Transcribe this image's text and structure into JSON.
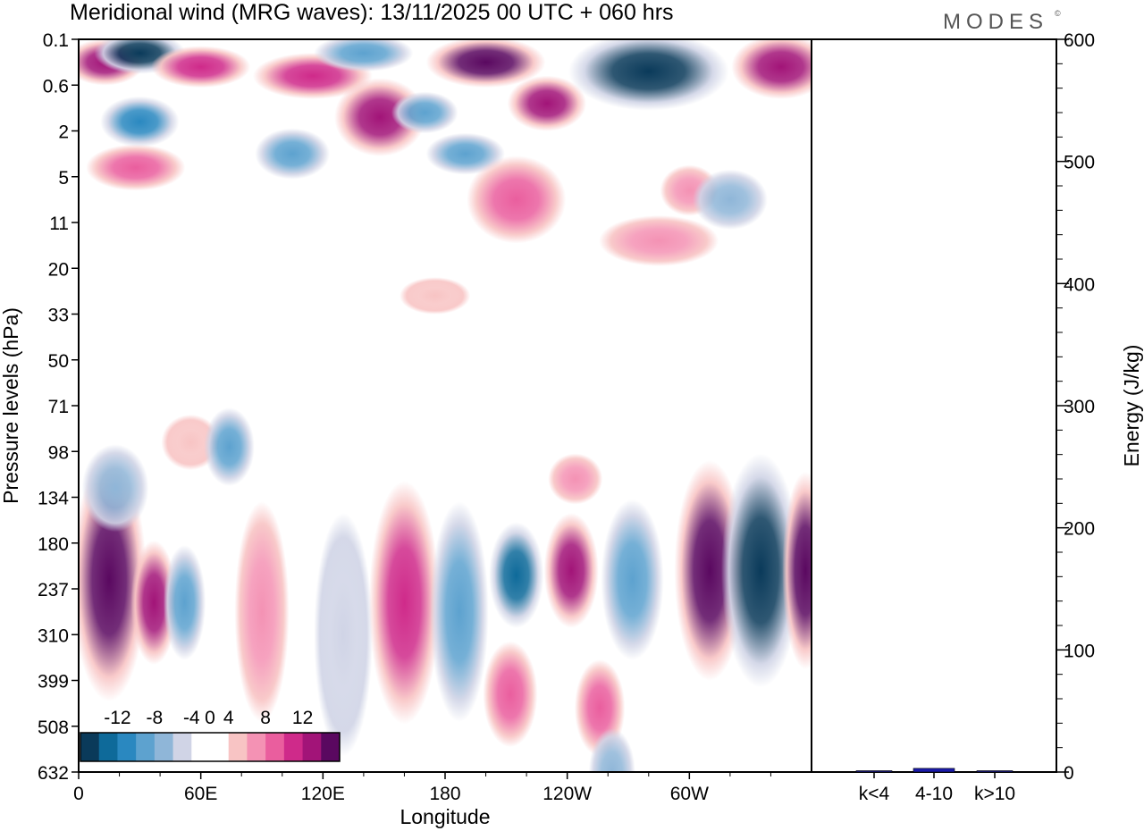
{
  "header": {
    "title": "Meridional wind (MRG waves):  13/11/2025  00 UTC  + 060 hrs",
    "brand": "MODES",
    "brand_mark": "©"
  },
  "chart_data": [
    {
      "type": "heatmap",
      "title": "Meridional wind (MRG waves):  13/11/2025  00 UTC  + 060 hrs",
      "xlabel": "Longitude",
      "ylabel": "Pressure levels (hPa)",
      "x_ticks": [
        "0",
        "60E",
        "120E",
        "180",
        "120W",
        "60W"
      ],
      "x_tick_longitudes": [
        0,
        60,
        120,
        180,
        240,
        300
      ],
      "xlim": [
        0,
        360
      ],
      "y_ticks": [
        "0.1",
        "0.6",
        "2",
        "5",
        "11",
        "20",
        "33",
        "50",
        "71",
        "98",
        "134",
        "180",
        "237",
        "310",
        "399",
        "508",
        "632"
      ],
      "y_tick_index": [
        0,
        1,
        2,
        3,
        4,
        5,
        6,
        7,
        8,
        9,
        10,
        11,
        12,
        13,
        14,
        15,
        16
      ],
      "colorbar": {
        "levels": [
          -14,
          -12,
          -10,
          -8,
          -6,
          -4,
          -2,
          2,
          4,
          6,
          8,
          10,
          12,
          14
        ],
        "labels": [
          "-12",
          "-8",
          "-4",
          "0",
          "4",
          "8",
          "12"
        ],
        "label_values": [
          -12,
          -8,
          -4,
          0,
          4,
          8,
          12
        ],
        "colors": [
          "#0a3a5a",
          "#0e6a9a",
          "#2a88c0",
          "#5da2cf",
          "#8fb6d8",
          "#d0d4e6",
          "#ffffff",
          "#ffffff",
          "#f8c4c4",
          "#f492b4",
          "#ea5e9e",
          "#cf2a8a",
          "#a21478",
          "#5a0860"
        ]
      },
      "features": [
        {
          "lon": 15,
          "level": 11.8,
          "value": 14,
          "width_lon": 28,
          "height_levels": 5.0
        },
        {
          "lon": 13,
          "level": 0.5,
          "value": 12,
          "width_lon": 30,
          "height_levels": 0.7
        },
        {
          "lon": 30,
          "level": 0.3,
          "value": -13,
          "width_lon": 36,
          "height_levels": 0.6
        },
        {
          "lon": 30,
          "level": 1.8,
          "value": -10,
          "width_lon": 30,
          "height_levels": 0.8
        },
        {
          "lon": 60,
          "level": 0.6,
          "value": 10,
          "width_lon": 40,
          "height_levels": 0.6
        },
        {
          "lon": 115,
          "level": 0.8,
          "value": 9,
          "width_lon": 50,
          "height_levels": 0.7
        },
        {
          "lon": 148,
          "level": 1.7,
          "value": 11,
          "width_lon": 36,
          "height_levels": 1.4
        },
        {
          "lon": 140,
          "level": 0.3,
          "value": -8,
          "width_lon": 40,
          "height_levels": 0.5
        },
        {
          "lon": 200,
          "level": 0.5,
          "value": 13,
          "width_lon": 50,
          "height_levels": 0.8
        },
        {
          "lon": 230,
          "level": 1.4,
          "value": 12,
          "width_lon": 30,
          "height_levels": 0.9
        },
        {
          "lon": 280,
          "level": 0.7,
          "value": -14,
          "width_lon": 70,
          "height_levels": 1.4
        },
        {
          "lon": 345,
          "level": 0.6,
          "value": 11,
          "width_lon": 40,
          "height_levels": 1.1
        },
        {
          "lon": 105,
          "level": 2.5,
          "value": -7,
          "width_lon": 28,
          "height_levels": 0.8
        },
        {
          "lon": 190,
          "level": 2.5,
          "value": -8,
          "width_lon": 30,
          "height_levels": 0.6
        },
        {
          "lon": 215,
          "level": 3.5,
          "value": 8,
          "width_lon": 40,
          "height_levels": 1.6
        },
        {
          "lon": 28,
          "level": 2.8,
          "value": 7,
          "width_lon": 40,
          "height_levels": 0.7
        },
        {
          "lon": 300,
          "level": 3.3,
          "value": 5,
          "width_lon": 20,
          "height_levels": 0.8
        },
        {
          "lon": 320,
          "level": 3.5,
          "value": -6,
          "width_lon": 28,
          "height_levels": 1.0
        },
        {
          "lon": 285,
          "level": 4.4,
          "value": 5,
          "width_lon": 50,
          "height_levels": 0.8
        },
        {
          "lon": 175,
          "level": 5.6,
          "value": 4,
          "width_lon": 26,
          "height_levels": 0.5
        },
        {
          "lon": 170,
          "level": 1.6,
          "value": -8,
          "width_lon": 24,
          "height_levels": 0.6
        },
        {
          "lon": 55,
          "level": 8.8,
          "value": 4,
          "width_lon": 20,
          "height_levels": 0.9
        },
        {
          "lon": 74,
          "level": 8.9,
          "value": -7,
          "width_lon": 16,
          "height_levels": 1.4
        },
        {
          "lon": 18,
          "level": 9.8,
          "value": -6,
          "width_lon": 24,
          "height_levels": 1.6
        },
        {
          "lon": 37,
          "level": 12.3,
          "value": 11,
          "width_lon": 14,
          "height_levels": 2.4
        },
        {
          "lon": 52,
          "level": 12.3,
          "value": -8,
          "width_lon": 12,
          "height_levels": 2.2
        },
        {
          "lon": 90,
          "level": 12.5,
          "value": 5,
          "width_lon": 18,
          "height_levels": 4.5
        },
        {
          "lon": 130,
          "level": 13.0,
          "value": -4,
          "width_lon": 20,
          "height_levels": 5.0
        },
        {
          "lon": 160,
          "level": 12.3,
          "value": 10,
          "width_lon": 26,
          "height_levels": 5.0
        },
        {
          "lon": 187,
          "level": 12.5,
          "value": -7,
          "width_lon": 20,
          "height_levels": 4.5
        },
        {
          "lon": 212,
          "level": 14.3,
          "value": 7,
          "width_lon": 18,
          "height_levels": 2.0
        },
        {
          "lon": 215,
          "level": 11.7,
          "value": -12,
          "width_lon": 18,
          "height_levels": 2.0
        },
        {
          "lon": 242,
          "level": 11.6,
          "value": 12,
          "width_lon": 18,
          "height_levels": 2.2
        },
        {
          "lon": 272,
          "level": 11.8,
          "value": -8,
          "width_lon": 22,
          "height_levels": 3.2
        },
        {
          "lon": 256,
          "level": 14.6,
          "value": 8,
          "width_lon": 16,
          "height_levels": 1.8
        },
        {
          "lon": 262,
          "level": 16.0,
          "value": -6,
          "width_lon": 14,
          "height_levels": 1.6
        },
        {
          "lon": 244,
          "level": 9.6,
          "value": 6,
          "width_lon": 18,
          "height_levels": 0.8
        },
        {
          "lon": 310,
          "level": 11.6,
          "value": 13,
          "width_lon": 26,
          "height_levels": 4.5
        },
        {
          "lon": 335,
          "level": 11.6,
          "value": -14,
          "width_lon": 30,
          "height_levels": 4.8
        },
        {
          "lon": 357,
          "level": 11.6,
          "value": 13,
          "width_lon": 14,
          "height_levels": 4.0
        }
      ]
    },
    {
      "type": "bar",
      "ylabel": "Energy (J/kg)",
      "categories": [
        "k<4",
        "4-10",
        "k>10"
      ],
      "values": [
        0.5,
        3,
        0.5
      ],
      "ylim": [
        0,
        600
      ],
      "y_ticks": [
        "0",
        "100",
        "200",
        "300",
        "400",
        "500",
        "600"
      ],
      "colors": [
        "#1a1a8a",
        "#1a1aaa",
        "#1a1a8a"
      ]
    }
  ]
}
